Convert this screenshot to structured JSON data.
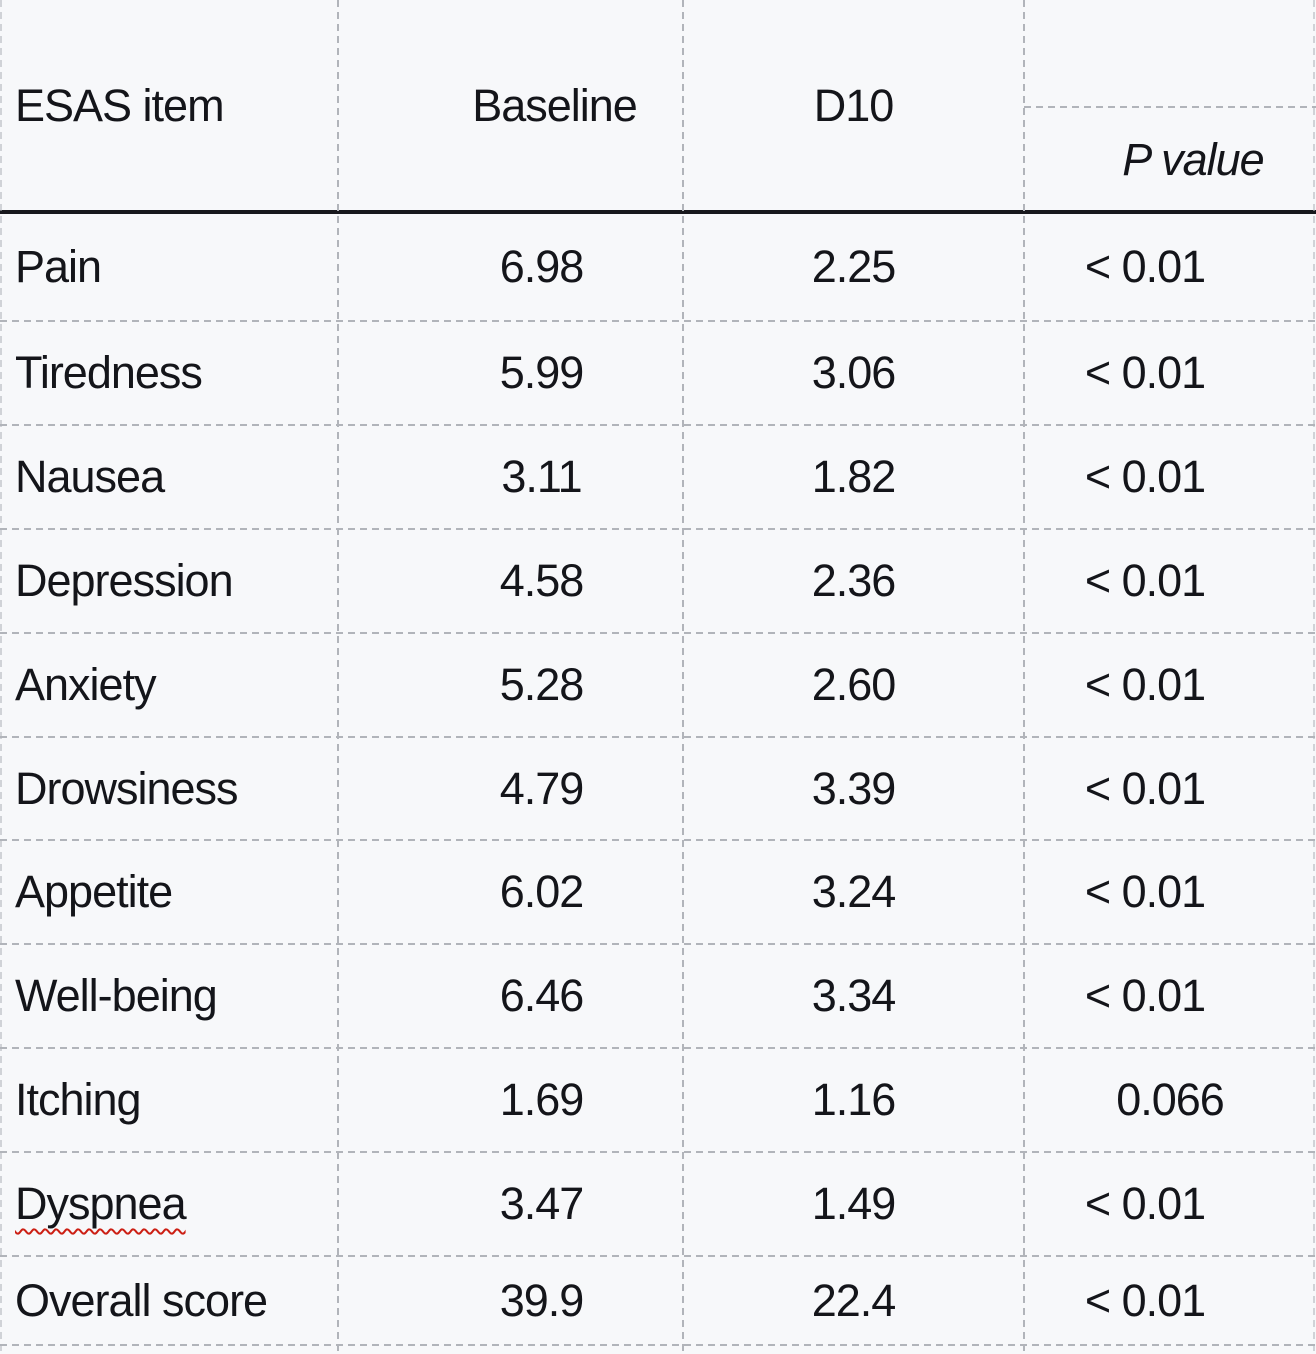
{
  "table": {
    "columns": {
      "item": "ESAS item",
      "baseline": "Baseline",
      "d10": "D10",
      "p": "P value"
    },
    "rows": [
      {
        "item": "Pain",
        "baseline": "6.98",
        "d10": "2.25",
        "p": "< 0.01"
      },
      {
        "item": "Tiredness",
        "baseline": "5.99",
        "d10": "3.06",
        "p": "< 0.01"
      },
      {
        "item": "Nausea",
        "baseline": "3.11",
        "d10": "1.82",
        "p": "< 0.01"
      },
      {
        "item": "Depression",
        "baseline": "4.58",
        "d10": "2.36",
        "p": "< 0.01"
      },
      {
        "item": "Anxiety",
        "baseline": "5.28",
        "d10": "2.60",
        "p": "< 0.01"
      },
      {
        "item": "Drowsiness",
        "baseline": "4.79",
        "d10": "3.39",
        "p": "< 0.01"
      },
      {
        "item": "Appetite",
        "baseline": "6.02",
        "d10": "3.24",
        "p": "< 0.01"
      },
      {
        "item": "Well-being",
        "baseline": "6.46",
        "d10": "3.34",
        "p": "< 0.01"
      },
      {
        "item": "Itching",
        "baseline": "1.69",
        "d10": "1.16",
        "p": "0.066"
      },
      {
        "item": "Dyspnea",
        "baseline": "3.47",
        "d10": "1.49",
        "p": "< 0.01",
        "spellcheck_underline": true
      },
      {
        "item": "Overall score",
        "baseline": "39.9",
        "d10": "22.4",
        "p": "< 0.01"
      }
    ],
    "colors": {
      "background": "#f7f8fa",
      "text": "#14151a",
      "gridline": "#b1b4ba",
      "header_rule": "#17181c",
      "spellcheck_squiggle": "#cc1f14"
    }
  }
}
